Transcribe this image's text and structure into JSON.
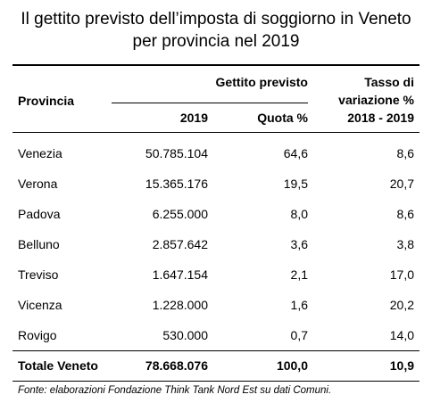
{
  "header": {
    "title": [
      "Il gettito previsto dell’imposta di soggiorno in Veneto",
      "per provincia nel 2019"
    ]
  },
  "table": {
    "columns": {
      "province": "Provincia",
      "group": "Gettito previsto",
      "year": "2019",
      "share": "Quota %",
      "change": [
        "Tasso di",
        "variazione %",
        "2018 - 2019"
      ]
    },
    "rows": [
      [
        "Venezia",
        "50.785.104",
        "64,6",
        "8,6"
      ],
      [
        "Verona",
        "15.365.176",
        "19,5",
        "20,7"
      ],
      [
        "Padova",
        "6.255.000",
        "8,0",
        "8,6"
      ],
      [
        "Belluno",
        "2.857.642",
        "3,6",
        "3,8"
      ],
      [
        "Treviso",
        "1.647.154",
        "2,1",
        "17,0"
      ],
      [
        "Vicenza",
        "1.228.000",
        "1,6",
        "20,2"
      ],
      [
        "Rovigo",
        "530.000",
        "0,7",
        "14,0"
      ]
    ],
    "total": [
      "Totale Veneto",
      "78.668.076",
      "100,0",
      "10,9"
    ]
  },
  "footer": {
    "source": "Fonte: elaborazioni Fondazione Think Tank Nord Est su dati Comuni."
  }
}
